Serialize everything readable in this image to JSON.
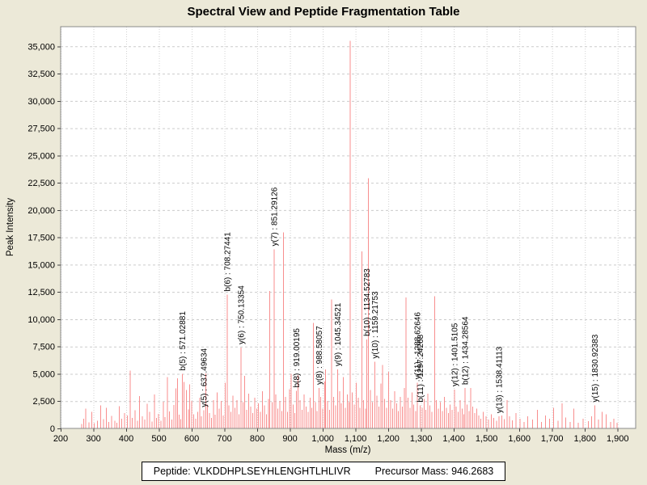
{
  "window": {
    "title": "Spectral View and Peptide Fragmentation Table"
  },
  "colors": {
    "background": "#ECE9D8",
    "plot_background": "#FFFFFF",
    "peak": "#F88E8E",
    "grid_horizontal": "#CBCBCB",
    "grid_vertical": "#D2D2D2",
    "plot_border": "#8A8A8A",
    "tick": "#444444",
    "text": "#000000"
  },
  "footer": {
    "peptide_text": "Peptide: VLKDDHPLSEYHLENGHTLHLIVR",
    "precursor_text": "Precursor Mass: 946.2683"
  },
  "chart_data": {
    "type": "bar",
    "subtype": "mass-spectrum-stick-plot",
    "title": "Spectral View and Peptide Fragmentation Table",
    "xlabel": "Mass (m/z)",
    "ylabel": "Peak Intensity",
    "xlim": [
      200,
      1955
    ],
    "ylim": [
      0,
      36800
    ],
    "grid": "dashed",
    "legend": "none",
    "x_ticks": {
      "values": [
        200,
        300,
        400,
        500,
        600,
        700,
        800,
        900,
        1000,
        1100,
        1200,
        1300,
        1400,
        1500,
        1600,
        1700,
        1800,
        1900
      ],
      "labels": [
        "200",
        "300",
        "400",
        "500",
        "600",
        "700",
        "800",
        "900",
        "1,000",
        "1,100",
        "1,200",
        "1,300",
        "1,400",
        "1,500",
        "1,600",
        "1,700",
        "1,800",
        "1,900"
      ]
    },
    "y_ticks": {
      "values": [
        0,
        2500,
        5000,
        7500,
        10000,
        12500,
        15000,
        17500,
        20000,
        22500,
        25000,
        27500,
        30000,
        32500,
        35000
      ],
      "labels": [
        "0",
        "2,500",
        "5,000",
        "7,500",
        "10,000",
        "12,500",
        "15,000",
        "17,500",
        "20,000",
        "22,500",
        "25,000",
        "27,500",
        "30,000",
        "32,500",
        "35,000"
      ]
    },
    "annotated_peaks": [
      {
        "label": "b(5) : 571.02881",
        "mz": 571.02881,
        "intensity": 5000
      },
      {
        "label": "y(5) : 637.49634",
        "mz": 637.49634,
        "intensity": 1650
      },
      {
        "label": "b(6) : 708.27441",
        "mz": 708.27441,
        "intensity": 12250
      },
      {
        "label": "y(6) : 750.13354",
        "mz": 750.13354,
        "intensity": 7400
      },
      {
        "label": "y(7) : 851.29126",
        "mz": 851.29126,
        "intensity": 16400
      },
      {
        "label": "b(8) : 919.00195",
        "mz": 919.00195,
        "intensity": 3450
      },
      {
        "label": "y(8) : 988.58057",
        "mz": 988.58057,
        "intensity": 3700
      },
      {
        "label": "y(9) : 1045.34521",
        "mz": 1045.34521,
        "intensity": 5400
      },
      {
        "label": "b(10) : 1134.52783",
        "mz": 1134.52783,
        "intensity": 8150
      },
      {
        "label": "y(10) : 1159.21753",
        "mz": 1159.21753,
        "intensity": 6100
      },
      {
        "label": "y(11) : 1288.62646",
        "mz": 1288.62646,
        "intensity": 4200
      },
      {
        "label": "b(11) : 1297.24268",
        "mz": 1297.24268,
        "intensity": 2100
      },
      {
        "label": "y(12) : 1401.5105",
        "mz": 1401.5105,
        "intensity": 3550
      },
      {
        "label": "b(12) : 1434.28564",
        "mz": 1434.28564,
        "intensity": 3700
      },
      {
        "label": "y(13) : 1538.41113",
        "mz": 1538.41113,
        "intensity": 1100
      },
      {
        "label": "y(15) : 1830.92383",
        "mz": 1830.92383,
        "intensity": 2100
      }
    ],
    "peaks": [
      [
        264,
        400
      ],
      [
        270,
        900
      ],
      [
        277,
        1800
      ],
      [
        286,
        550
      ],
      [
        295,
        1500
      ],
      [
        303,
        480
      ],
      [
        312,
        700
      ],
      [
        322,
        2100
      ],
      [
        331,
        850
      ],
      [
        339,
        1900
      ],
      [
        347,
        600
      ],
      [
        356,
        1150
      ],
      [
        365,
        700
      ],
      [
        371,
        520
      ],
      [
        379,
        2050
      ],
      [
        386,
        900
      ],
      [
        395,
        1400
      ],
      [
        404,
        1200
      ],
      [
        412,
        5300
      ],
      [
        419,
        950
      ],
      [
        427,
        1650
      ],
      [
        434,
        700
      ],
      [
        441,
        2950
      ],
      [
        449,
        1100
      ],
      [
        457,
        820
      ],
      [
        464,
        2250
      ],
      [
        471,
        1500
      ],
      [
        479,
        640
      ],
      [
        486,
        3100
      ],
      [
        493,
        950
      ],
      [
        499,
        1350
      ],
      [
        506,
        720
      ],
      [
        513,
        2450
      ],
      [
        519,
        1050
      ],
      [
        526,
        4700
      ],
      [
        532,
        1550
      ],
      [
        539,
        830
      ],
      [
        546,
        2150
      ],
      [
        552,
        3650
      ],
      [
        557,
        4600
      ],
      [
        562,
        1250
      ],
      [
        567,
        860
      ],
      [
        577,
        4250
      ],
      [
        584,
        3500
      ],
      [
        590,
        1750
      ],
      [
        594,
        4050
      ],
      [
        600,
        2500
      ],
      [
        606,
        1300
      ],
      [
        612,
        900
      ],
      [
        618,
        1500
      ],
      [
        624,
        2800
      ],
      [
        630,
        1100
      ],
      [
        643,
        5050
      ],
      [
        648,
        2200
      ],
      [
        654,
        1400
      ],
      [
        660,
        950
      ],
      [
        666,
        2600
      ],
      [
        672,
        1250
      ],
      [
        678,
        3300
      ],
      [
        684,
        1800
      ],
      [
        690,
        2500
      ],
      [
        696,
        1200
      ],
      [
        702,
        4200
      ],
      [
        714,
        2100
      ],
      [
        720,
        1500
      ],
      [
        726,
        3000
      ],
      [
        732,
        1900
      ],
      [
        738,
        2600
      ],
      [
        744,
        1300
      ],
      [
        756,
        2400
      ],
      [
        762,
        4800
      ],
      [
        768,
        1700
      ],
      [
        774,
        3200
      ],
      [
        780,
        2000
      ],
      [
        786,
        1400
      ],
      [
        792,
        2800
      ],
      [
        798,
        1800
      ],
      [
        804,
        2300
      ],
      [
        810,
        1500
      ],
      [
        816,
        3400
      ],
      [
        822,
        2100
      ],
      [
        828,
        1300
      ],
      [
        834,
        2700
      ],
      [
        838,
        12600
      ],
      [
        845,
        2400
      ],
      [
        857,
        3100
      ],
      [
        863,
        1800
      ],
      [
        869,
        2500
      ],
      [
        875,
        1600
      ],
      [
        880,
        17950
      ],
      [
        886,
        2900
      ],
      [
        892,
        1500
      ],
      [
        898,
        3600
      ],
      [
        904,
        5000
      ],
      [
        910,
        2200
      ],
      [
        915,
        1400
      ],
      [
        925,
        4900
      ],
      [
        931,
        2600
      ],
      [
        937,
        1700
      ],
      [
        943,
        3100
      ],
      [
        949,
        2000
      ],
      [
        955,
        1500
      ],
      [
        961,
        2800
      ],
      [
        966,
        1900
      ],
      [
        971,
        9650
      ],
      [
        977,
        2400
      ],
      [
        982,
        1600
      ],
      [
        994,
        2900
      ],
      [
        1000,
        1800
      ],
      [
        1006,
        4300
      ],
      [
        1009,
        5400
      ],
      [
        1015,
        2500
      ],
      [
        1021,
        1700
      ],
      [
        1027,
        11800
      ],
      [
        1033,
        2900
      ],
      [
        1039,
        2100
      ],
      [
        1051,
        3400
      ],
      [
        1057,
        2300
      ],
      [
        1063,
        4700
      ],
      [
        1069,
        1900
      ],
      [
        1075,
        3100
      ],
      [
        1080,
        2400
      ],
      [
        1084,
        35500
      ],
      [
        1090,
        3300
      ],
      [
        1096,
        2200
      ],
      [
        1102,
        4200
      ],
      [
        1108,
        2800
      ],
      [
        1113,
        1900
      ],
      [
        1119,
        16200
      ],
      [
        1125,
        2600
      ],
      [
        1130,
        1800
      ],
      [
        1139,
        22900
      ],
      [
        1145,
        3500
      ],
      [
        1151,
        2400
      ],
      [
        1165,
        3000
      ],
      [
        1171,
        2000
      ],
      [
        1177,
        4100
      ],
      [
        1183,
        5800
      ],
      [
        1189,
        2700
      ],
      [
        1195,
        1900
      ],
      [
        1201,
        5200
      ],
      [
        1207,
        2600
      ],
      [
        1213,
        1800
      ],
      [
        1219,
        3400
      ],
      [
        1225,
        2300
      ],
      [
        1231,
        1600
      ],
      [
        1237,
        2900
      ],
      [
        1243,
        2000
      ],
      [
        1249,
        3700
      ],
      [
        1254,
        12000
      ],
      [
        1260,
        2800
      ],
      [
        1266,
        1900
      ],
      [
        1272,
        3300
      ],
      [
        1278,
        2200
      ],
      [
        1284,
        1600
      ],
      [
        1303,
        1900
      ],
      [
        1309,
        2700
      ],
      [
        1315,
        1700
      ],
      [
        1321,
        3200
      ],
      [
        1327,
        2100
      ],
      [
        1333,
        1500
      ],
      [
        1341,
        12100
      ],
      [
        1347,
        2600
      ],
      [
        1353,
        1800
      ],
      [
        1359,
        2400
      ],
      [
        1365,
        1600
      ],
      [
        1371,
        2900
      ],
      [
        1377,
        1900
      ],
      [
        1383,
        1400
      ],
      [
        1389,
        2200
      ],
      [
        1395,
        1700
      ],
      [
        1407,
        2000
      ],
      [
        1413,
        1500
      ],
      [
        1419,
        2600
      ],
      [
        1425,
        1800
      ],
      [
        1431,
        1300
      ],
      [
        1440,
        2200
      ],
      [
        1446,
        1600
      ],
      [
        1452,
        3700
      ],
      [
        1458,
        2000
      ],
      [
        1464,
        1400
      ],
      [
        1470,
        1800
      ],
      [
        1476,
        1200
      ],
      [
        1482,
        900
      ],
      [
        1490,
        1500
      ],
      [
        1498,
        1100
      ],
      [
        1506,
        800
      ],
      [
        1514,
        1300
      ],
      [
        1522,
        950
      ],
      [
        1530,
        700
      ],
      [
        1546,
        1200
      ],
      [
        1554,
        850
      ],
      [
        1562,
        2600
      ],
      [
        1570,
        1100
      ],
      [
        1578,
        750
      ],
      [
        1590,
        1400
      ],
      [
        1602,
        900
      ],
      [
        1614,
        600
      ],
      [
        1626,
        1100
      ],
      [
        1640,
        800
      ],
      [
        1655,
        1700
      ],
      [
        1668,
        600
      ],
      [
        1680,
        1200
      ],
      [
        1692,
        900
      ],
      [
        1705,
        1900
      ],
      [
        1718,
        700
      ],
      [
        1730,
        2300
      ],
      [
        1742,
        1000
      ],
      [
        1755,
        600
      ],
      [
        1766,
        1800
      ],
      [
        1780,
        500
      ],
      [
        1795,
        900
      ],
      [
        1810,
        650
      ],
      [
        1820,
        1100
      ],
      [
        1842,
        800
      ],
      [
        1852,
        1500
      ],
      [
        1865,
        1300
      ],
      [
        1878,
        600
      ],
      [
        1888,
        900
      ],
      [
        1898,
        500
      ]
    ]
  }
}
